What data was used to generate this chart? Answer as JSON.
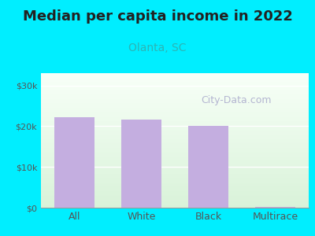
{
  "title": "Median per capita income in 2022",
  "subtitle": "Olanta, SC",
  "categories": [
    "All",
    "White",
    "Black",
    "Multirace"
  ],
  "values": [
    22200,
    21700,
    20000,
    200
  ],
  "bar_color": "#c4aee0",
  "title_fontsize": 13,
  "title_fontweight": "bold",
  "title_color": "#222222",
  "subtitle_fontsize": 10,
  "subtitle_color": "#2bb5b5",
  "outer_bg": "#00eeff",
  "yticks": [
    0,
    10000,
    20000,
    30000
  ],
  "ytick_labels": [
    "$0",
    "$10k",
    "$20k",
    "$30k"
  ],
  "ylim": [
    0,
    33000
  ],
  "tick_color": "#555555",
  "tick_fontsize": 8,
  "xlabel_fontsize": 9,
  "xlabel_color": "#555555",
  "watermark": "City-Data.com",
  "watermark_color": "#aaaacc",
  "watermark_fontsize": 9,
  "grid_color": "#ffffff",
  "inner_bg_top": "#f0faf0",
  "inner_bg_bottom": "#d8f0d8"
}
